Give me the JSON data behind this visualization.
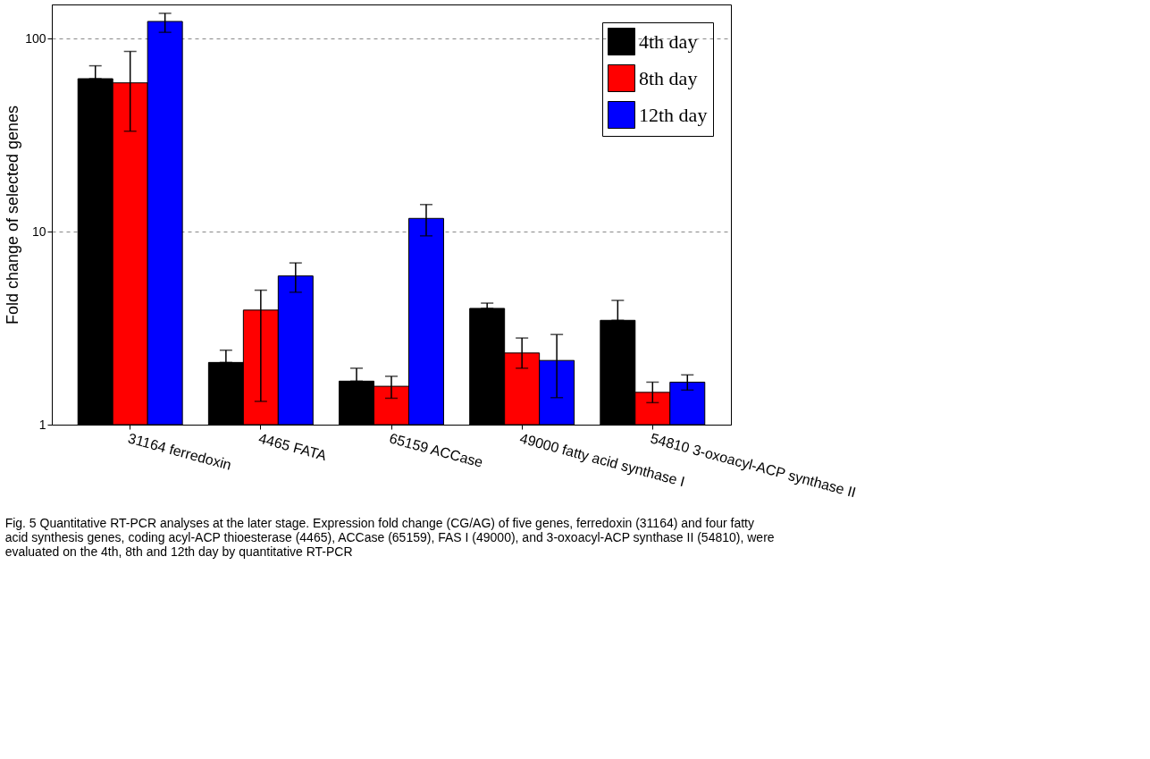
{
  "chart_data": {
    "type": "bar",
    "ylabel": "Fold change of selected genes",
    "categories": [
      "31164 ferredoxin",
      "4465 FATA",
      "65159 ACCase",
      "49000 fatty acid synthase I",
      "54810 3-oxoacyl-ACP synthase II"
    ],
    "series": [
      {
        "name": "4th day",
        "color": "#000000",
        "values": [
          61.9,
          2.1,
          1.68,
          4.0,
          3.47
        ],
        "errors": [
          [
            61.9,
            72.2
          ],
          [
            2.1,
            2.43
          ],
          [
            1.68,
            1.96
          ],
          [
            4.0,
            4.26
          ],
          [
            3.47,
            4.4
          ]
        ]
      },
      {
        "name": "8th day",
        "color": "#ff0000",
        "values": [
          58.9,
          3.92,
          1.58,
          2.35,
          1.47
        ],
        "errors": [
          [
            33.1,
            85.7
          ],
          [
            1.32,
            4.97
          ],
          [
            1.37,
            1.78
          ],
          [
            1.96,
            2.81
          ],
          [
            1.3,
            1.66
          ]
        ]
      },
      {
        "name": "12th day",
        "color": "#0000ff",
        "values": [
          122.5,
          5.89,
          11.7,
          2.15,
          1.66
        ],
        "errors": [
          [
            107.6,
            135
          ],
          [
            4.85,
            6.88
          ],
          [
            9.5,
            13.8
          ],
          [
            1.38,
            2.93
          ],
          [
            1.51,
            1.81
          ]
        ]
      }
    ],
    "log": "y",
    "ylim": [
      1,
      150
    ],
    "yticks": [
      1,
      10,
      100
    ],
    "grid": "y",
    "legend": "top right",
    "annotations": [
      "Fig. 5  Quantitative RT-PCR analyses at the later stage. Expression fold change (CG/AG) of five genes, ferredoxin (31164) and four fatty acid synthesis genes, coding acyl-ACP thioesterase (4465), ACCase (65159), FAS I (49000), and 3-oxoacyl-ACP synthase II (54810), were evaluated on the 4th, 8th and 12th day by quantitative RT-PCR"
    ]
  }
}
